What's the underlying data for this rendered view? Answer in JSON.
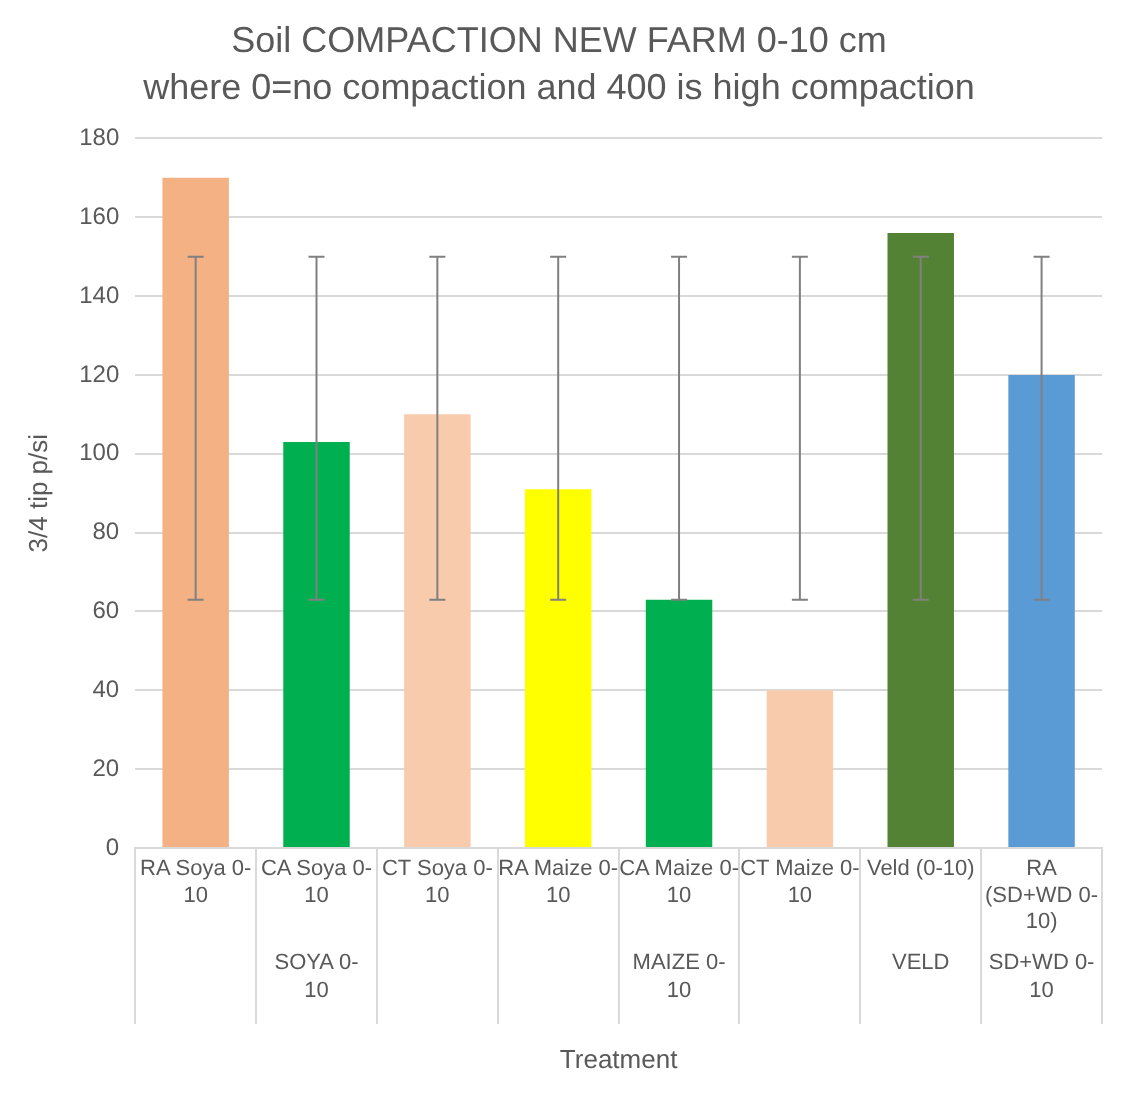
{
  "chart_data": {
    "type": "bar",
    "title": "Soil COMPACTION NEW FARM 0-10 cm",
    "subtitle": "where 0=no compaction and 400 is high compaction",
    "xlabel": "Treatment",
    "ylabel": "3/4 tip p/si",
    "categories": [
      "RA Soya 0-10",
      "CA Soya 0-10",
      "CT Soya 0-10",
      "RA Maize 0-10",
      "CA Maize 0-10",
      "CT Maize 0-10",
      "Veld (0-10)",
      "RA (SD+WD 0-10)"
    ],
    "values": [
      170,
      103,
      110,
      91,
      63,
      40,
      156,
      120
    ],
    "colors": [
      "#f4b183",
      "#00b050",
      "#f8cbad",
      "#ffff00",
      "#00b050",
      "#f8cbad",
      "#548235",
      "#5b9bd5"
    ],
    "errors": [
      [
        63,
        150
      ],
      [
        63,
        150
      ],
      [
        63,
        150
      ],
      [
        63,
        150
      ],
      [
        63,
        150
      ],
      [
        63,
        150
      ],
      [
        63,
        150
      ],
      [
        63,
        150
      ]
    ],
    "annotations": [
      "SOYA 0-10",
      "MAIZE 0-10",
      "VELD",
      "SD+WD 0-10"
    ],
    "ylim": [
      0,
      180
    ],
    "yticks": [
      0,
      20,
      40,
      60,
      80,
      100,
      120,
      140,
      160,
      180
    ],
    "grid": "y",
    "legend": false
  }
}
